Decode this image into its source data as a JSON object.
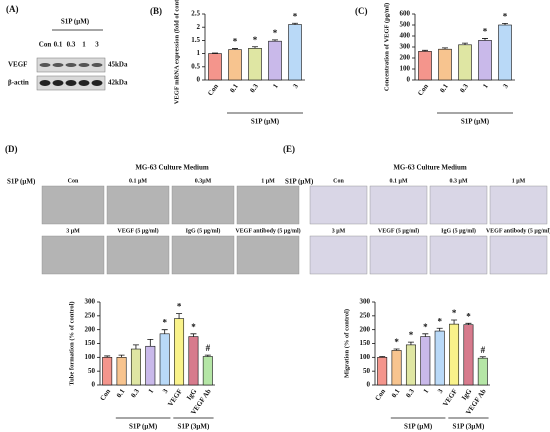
{
  "panel_a": {
    "label": "(A)",
    "treatment": "S1P (μM)",
    "lanes": [
      "Con",
      "0.1",
      "0.3",
      "1",
      "3"
    ],
    "rows": [
      {
        "name": "VEGF",
        "size": "45kDa"
      },
      {
        "name": "β-actin",
        "size": "42kDa"
      }
    ]
  },
  "panel_d_images": {
    "label": "(D)",
    "title": "MG-63 Culture Medium",
    "row_label": "S1P (μM)",
    "images": [
      "Con",
      "0.1 μM",
      "0.3μM",
      "1 μM",
      "3 μM",
      "VEGF (5 μg/ml)",
      "IgG (5 μg/ml)",
      "VEGF antibody (5 μg/ml)"
    ]
  },
  "panel_e_images": {
    "label": "(E)",
    "title": "MG-63 Culture Medium",
    "row_label": "S1P (μM)",
    "images": [
      "Con",
      "0.1 μM",
      "0.3 μM",
      "1 μM",
      "3 μM",
      "VEGF (5 μg/ml)",
      "IgG (5 μg/ml)",
      "VEGF antibody (5 μg/ml)"
    ]
  },
  "chart_data": [
    {
      "type": "bar",
      "label": "(B)",
      "ylabel": "VEGF mRNA expression (fold of control)",
      "categories": [
        "Con",
        "0.1",
        "0.3",
        "1",
        "3"
      ],
      "values": [
        1.0,
        1.15,
        1.2,
        1.47,
        2.1
      ],
      "errors": [
        0.02,
        0.04,
        0.06,
        0.05,
        0.05
      ],
      "colors": [
        "#f4958c",
        "#f7c48f",
        "#dfe6a3",
        "#c9b9ea",
        "#b9d9f7"
      ],
      "annotations": [
        null,
        "*",
        "*",
        "*",
        "*"
      ],
      "groups": [
        {
          "label": "S1P (μM)",
          "categories": [
            "0.1",
            "0.3",
            "1",
            "3"
          ]
        }
      ],
      "ylim": [
        0,
        2.5
      ],
      "yticks": [
        0,
        0.5,
        1,
        1.5,
        2,
        2.5
      ]
    },
    {
      "type": "bar",
      "label": "(C)",
      "ylabel": "Concentration of VEGF (pg/ml)",
      "categories": [
        "Con",
        "0.1",
        "0.3",
        "1",
        "3"
      ],
      "values": [
        260,
        280,
        320,
        360,
        500
      ],
      "errors": [
        10,
        12,
        15,
        18,
        15
      ],
      "colors": [
        "#f4958c",
        "#f7c48f",
        "#dfe6a3",
        "#c9b9ea",
        "#b9d9f7"
      ],
      "annotations": [
        null,
        null,
        null,
        "*",
        "*"
      ],
      "groups": [
        {
          "label": "S1P (μM)",
          "categories": [
            "0.1",
            "0.3",
            "1",
            "3"
          ]
        }
      ],
      "ylim": [
        0,
        600
      ],
      "yticks": [
        0,
        100,
        200,
        300,
        400,
        500,
        600
      ]
    },
    {
      "type": "bar",
      "ylabel": "Tube formation (% of control)",
      "categories": [
        "Con",
        "0.1",
        "0.3",
        "1",
        "3",
        "VEGF",
        "IgG",
        "VEGF Ab"
      ],
      "values": [
        100,
        100,
        130,
        140,
        185,
        240,
        175,
        103
      ],
      "errors": [
        5,
        8,
        15,
        25,
        15,
        18,
        10,
        5
      ],
      "colors": [
        "#f4958c",
        "#f7c48f",
        "#dfe6a3",
        "#c9b9ea",
        "#b9d9f7",
        "#f9f28a",
        "#d77b8d",
        "#b5e6a6"
      ],
      "annotations": [
        null,
        null,
        null,
        null,
        "*",
        "*",
        "*",
        "#"
      ],
      "groups": [
        {
          "label": "S1P (μM)",
          "categories": [
            "0.1",
            "0.3",
            "1",
            "3"
          ]
        },
        {
          "label": "S1P (3μM)",
          "categories": [
            "VEGF",
            "IgG",
            "VEGF Ab"
          ]
        }
      ],
      "ylim": [
        0,
        300
      ],
      "yticks": [
        0,
        50,
        100,
        150,
        200,
        250,
        300
      ]
    },
    {
      "type": "bar",
      "ylabel": "Migration (% of control)",
      "categories": [
        "Con",
        "0.1",
        "0.3",
        "1",
        "3",
        "VEGF",
        "IgG",
        "VEGF Ab"
      ],
      "values": [
        100,
        125,
        145,
        175,
        195,
        220,
        218,
        97
      ],
      "errors": [
        3,
        5,
        10,
        10,
        10,
        15,
        5,
        5
      ],
      "colors": [
        "#f4958c",
        "#f7c48f",
        "#dfe6a3",
        "#c9b9ea",
        "#b9d9f7",
        "#f9f28a",
        "#d77b8d",
        "#b5e6a6"
      ],
      "annotations": [
        null,
        "*",
        "*",
        "*",
        "*",
        "*",
        "*",
        "#"
      ],
      "groups": [
        {
          "label": "S1P (μM)",
          "categories": [
            "0.1",
            "0.3",
            "1",
            "3"
          ]
        },
        {
          "label": "S1P (3μM)",
          "categories": [
            "VEGF",
            "IgG",
            "VEGF Ab"
          ]
        }
      ],
      "ylim": [
        0,
        300
      ],
      "yticks": [
        0,
        50,
        100,
        150,
        200,
        250,
        300
      ]
    }
  ]
}
